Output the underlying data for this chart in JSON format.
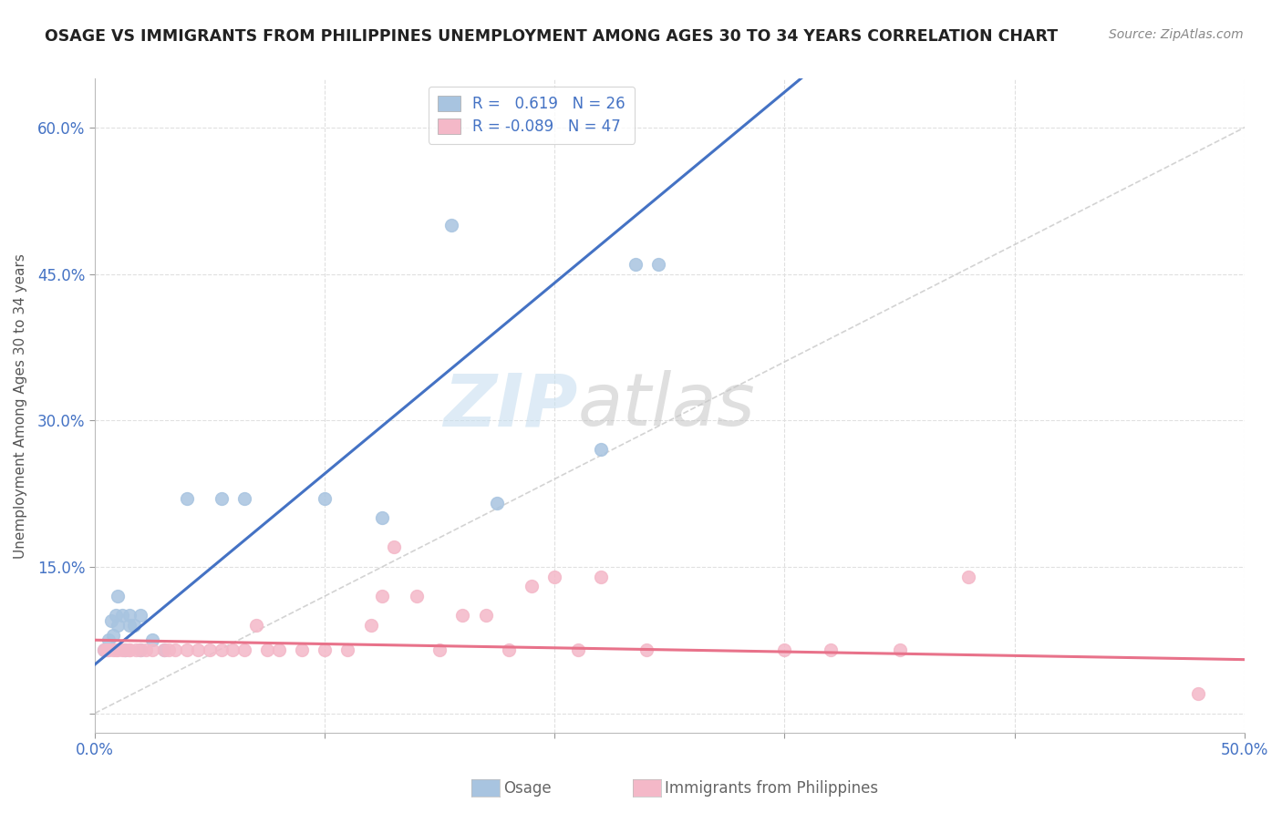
{
  "title": "OSAGE VS IMMIGRANTS FROM PHILIPPINES UNEMPLOYMENT AMONG AGES 30 TO 34 YEARS CORRELATION CHART",
  "source": "Source: ZipAtlas.com",
  "ylabel": "Unemployment Among Ages 30 to 34 years",
  "xlim": [
    0,
    0.5
  ],
  "ylim": [
    -0.02,
    0.65
  ],
  "xticks": [
    0.0,
    0.1,
    0.2,
    0.3,
    0.4,
    0.5
  ],
  "xticklabels": [
    "0.0%",
    "",
    "",
    "",
    "",
    "50.0%"
  ],
  "yticks": [
    0.0,
    0.15,
    0.3,
    0.45,
    0.6
  ],
  "yticklabels": [
    "",
    "15.0%",
    "30.0%",
    "45.0%",
    "60.0%"
  ],
  "osage_R": 0.619,
  "osage_N": 26,
  "phil_R": -0.089,
  "phil_N": 47,
  "osage_color": "#a8c4e0",
  "phil_color": "#f4b8c8",
  "osage_line_color": "#4472C4",
  "phil_line_color": "#E8728A",
  "ref_line_color": "#c8c8c8",
  "background_color": "#ffffff",
  "grid_color": "#e0e0e0",
  "title_color": "#222222",
  "legend_label_color": "#4472C4",
  "watermark_zip": "ZIP",
  "watermark_atlas": "atlas",
  "osage_x": [
    0.005,
    0.008,
    0.01,
    0.01,
    0.012,
    0.015,
    0.015,
    0.018,
    0.02,
    0.02,
    0.025,
    0.03,
    0.04,
    0.05,
    0.06,
    0.065,
    0.08,
    0.09,
    0.1,
    0.12,
    0.13,
    0.155,
    0.175,
    0.22,
    0.235,
    0.245
  ],
  "osage_y": [
    0.065,
    0.07,
    0.08,
    0.09,
    0.075,
    0.09,
    0.1,
    0.1,
    0.065,
    0.1,
    0.075,
    0.07,
    0.22,
    0.075,
    0.22,
    0.22,
    0.08,
    0.075,
    0.22,
    0.22,
    0.2,
    0.5,
    0.22,
    0.27,
    0.46,
    0.46
  ],
  "phil_x": [
    0.005,
    0.005,
    0.008,
    0.01,
    0.01,
    0.012,
    0.015,
    0.015,
    0.02,
    0.02,
    0.025,
    0.025,
    0.03,
    0.035,
    0.04,
    0.04,
    0.05,
    0.055,
    0.06,
    0.065,
    0.07,
    0.075,
    0.08,
    0.085,
    0.09,
    0.095,
    0.1,
    0.105,
    0.11,
    0.12,
    0.13,
    0.14,
    0.15,
    0.16,
    0.17,
    0.18,
    0.19,
    0.2,
    0.21,
    0.22,
    0.23,
    0.24,
    0.3,
    0.32,
    0.35,
    0.38,
    0.48
  ],
  "phil_y": [
    0.065,
    0.065,
    0.065,
    0.065,
    0.065,
    0.065,
    0.065,
    0.065,
    0.065,
    0.065,
    0.065,
    0.065,
    0.065,
    0.065,
    0.065,
    0.065,
    0.065,
    0.065,
    0.065,
    0.065,
    0.065,
    0.09,
    0.065,
    0.065,
    0.065,
    0.065,
    0.065,
    0.07,
    0.065,
    0.09,
    0.12,
    0.065,
    0.07,
    0.1,
    0.09,
    0.09,
    0.065,
    0.14,
    0.14,
    0.065,
    0.14,
    0.065,
    0.065,
    0.065,
    0.065,
    0.14,
    0.02
  ]
}
